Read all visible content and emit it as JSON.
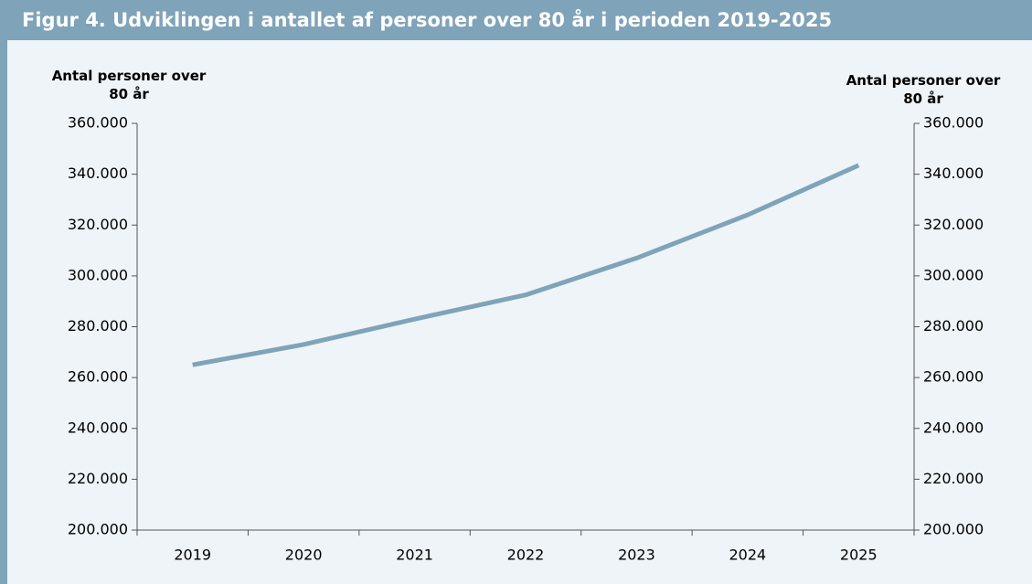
{
  "chart_data": {
    "type": "line",
    "title": "Figur 4. Udviklingen i antallet af personer over 80 år i perioden 2019-2025",
    "y_label": "Antal personer over 80 år",
    "y2_label": "Antal personer over 80 år",
    "categories": [
      "2019",
      "2020",
      "2021",
      "2022",
      "2023",
      "2024",
      "2025"
    ],
    "series": [
      {
        "name": "Antal personer over 80 år",
        "color": "#7fa3b8",
        "values": [
          265000,
          273000,
          283000,
          292500,
          307000,
          324000,
          343500
        ]
      }
    ],
    "ylim": [
      200000,
      360000
    ],
    "yticks": [
      {
        "value": 200000,
        "label": "200.000"
      },
      {
        "value": 220000,
        "label": "220.000"
      },
      {
        "value": 240000,
        "label": "240.000"
      },
      {
        "value": 260000,
        "label": "260.000"
      },
      {
        "value": 280000,
        "label": "280.000"
      },
      {
        "value": 300000,
        "label": "300.000"
      },
      {
        "value": 320000,
        "label": "320.000"
      },
      {
        "value": 340000,
        "label": "340.000"
      },
      {
        "value": 360000,
        "label": "360.000"
      }
    ],
    "y2lim": [
      200000,
      360000
    ],
    "y2ticks": [
      {
        "value": 200000,
        "label": "200.000"
      },
      {
        "value": 220000,
        "label": "220.000"
      },
      {
        "value": 240000,
        "label": "240.000"
      },
      {
        "value": 260000,
        "label": "260.000"
      },
      {
        "value": 280000,
        "label": "280.000"
      },
      {
        "value": 300000,
        "label": "300.000"
      },
      {
        "value": 320000,
        "label": "320.000"
      },
      {
        "value": 340000,
        "label": "340.000"
      },
      {
        "value": 360000,
        "label": "360.000"
      }
    ],
    "grid": false
  }
}
